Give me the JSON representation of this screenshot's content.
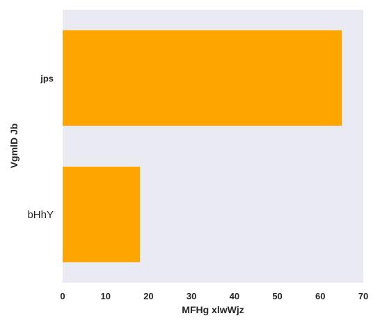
{
  "chart_data": {
    "type": "bar",
    "orientation": "horizontal",
    "categories": [
      "jps",
      "bHhY"
    ],
    "values": [
      65,
      18
    ],
    "xlabel": "MFHg xlwWjz",
    "ylabel": "VgmlD Jb",
    "xlim": [
      0,
      70
    ],
    "xticks": [
      "0",
      "10",
      "20",
      "30",
      "40",
      "50",
      "60",
      "70"
    ],
    "grid": false,
    "bar_color": "#FFA500",
    "background_color": "#EAEAF2"
  }
}
